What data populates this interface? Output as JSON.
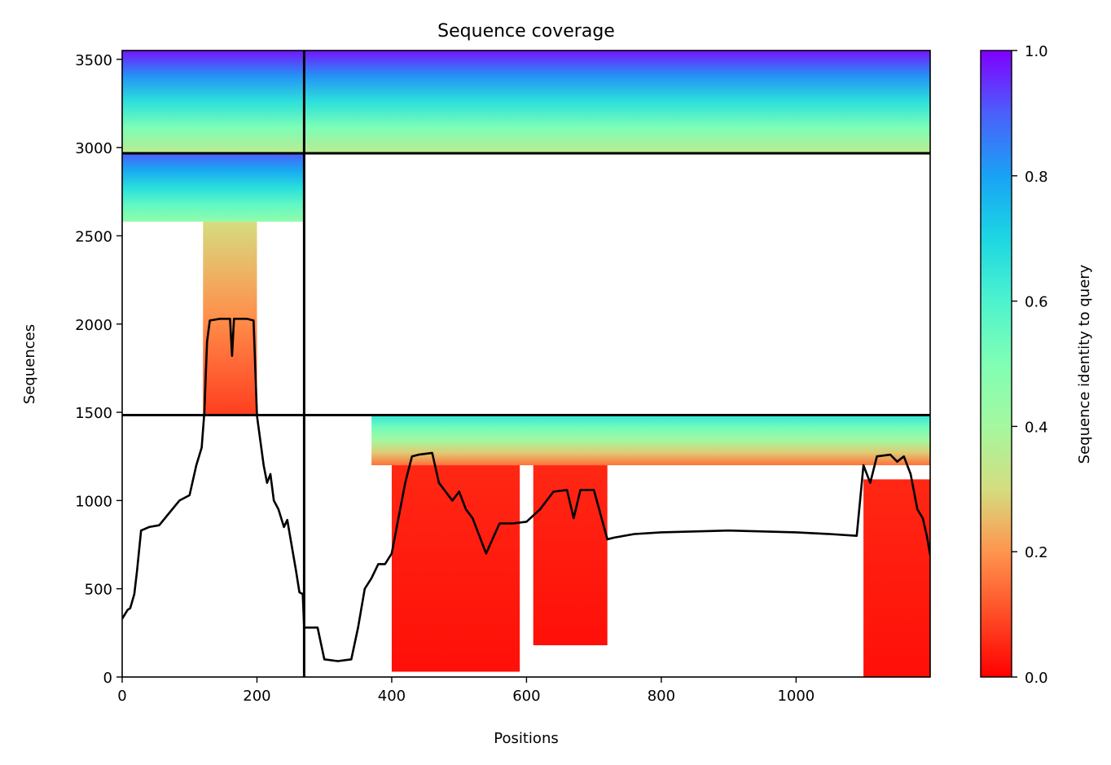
{
  "chart_data": {
    "type": "heatmap",
    "title": "Sequence coverage",
    "xlabel": "Positions",
    "ylabel": "Sequences",
    "xlim": [
      0,
      1199
    ],
    "ylim": [
      0,
      3550
    ],
    "x_ticks": [
      0,
      200,
      400,
      600,
      800,
      1000
    ],
    "y_ticks": [
      0,
      500,
      1000,
      1500,
      2000,
      2500,
      3000,
      3500
    ],
    "colorbar": {
      "label": "Sequence identity to query",
      "colormap": "rainbow",
      "range": [
        0,
        1
      ],
      "ticks": [
        "0.0",
        "0.2",
        "0.4",
        "0.6",
        "0.8",
        "1.0"
      ]
    },
    "grid": false,
    "chain_boundaries": {
      "x": [
        270
      ],
      "y": [
        1484,
        2968
      ]
    },
    "coverage_blocks": [
      {
        "x0": 0,
        "x1": 270,
        "y0": 2968,
        "y1": 3550,
        "identity_bottom": 0.35,
        "identity_top": 0.98
      },
      {
        "x0": 270,
        "x1": 1199,
        "y0": 2968,
        "y1": 3550,
        "identity_bottom": 0.35,
        "identity_top": 0.98
      },
      {
        "x0": 0,
        "x1": 270,
        "y0": 2580,
        "y1": 2968,
        "identity_bottom": 0.45,
        "identity_top": 0.9
      },
      {
        "x0": 120,
        "x1": 200,
        "y0": 1484,
        "y1": 2580,
        "identity_bottom": 0.08,
        "identity_top": 0.3
      },
      {
        "x0": 370,
        "x1": 1199,
        "y0": 1200,
        "y1": 1484,
        "identity_bottom": 0.15,
        "identity_top": 0.65
      },
      {
        "x0": 400,
        "x1": 590,
        "y0": 30,
        "y1": 1200,
        "identity_bottom": 0.02,
        "identity_top": 0.05
      },
      {
        "x0": 610,
        "x1": 720,
        "y0": 180,
        "y1": 1200,
        "identity_bottom": 0.02,
        "identity_top": 0.05
      },
      {
        "x0": 1100,
        "x1": 1199,
        "y0": 0,
        "y1": 1120,
        "identity_bottom": 0.02,
        "identity_top": 0.05
      }
    ],
    "coverage_line": {
      "x": [
        0,
        8,
        12,
        18,
        22,
        28,
        40,
        55,
        70,
        85,
        100,
        110,
        118,
        122,
        126,
        130,
        145,
        160,
        163,
        166,
        170,
        185,
        195,
        200,
        210,
        215,
        220,
        225,
        232,
        240,
        245,
        250,
        258,
        263,
        268,
        270,
        290,
        300,
        320,
        340,
        350,
        360,
        370,
        380,
        390,
        400,
        410,
        420,
        430,
        440,
        460,
        470,
        480,
        490,
        500,
        510,
        520,
        530,
        540,
        560,
        580,
        600,
        620,
        640,
        660,
        670,
        680,
        700,
        720,
        730,
        760,
        800,
        900,
        1000,
        1050,
        1090,
        1100,
        1110,
        1120,
        1140,
        1150,
        1160,
        1170,
        1180,
        1188,
        1194,
        1199
      ],
      "y": [
        330,
        380,
        390,
        470,
        600,
        830,
        850,
        860,
        930,
        1000,
        1030,
        1200,
        1300,
        1500,
        1900,
        2020,
        2030,
        2030,
        1820,
        2030,
        2030,
        2030,
        2020,
        1480,
        1200,
        1100,
        1150,
        1000,
        950,
        850,
        890,
        780,
        600,
        480,
        470,
        280,
        280,
        100,
        90,
        100,
        280,
        500,
        560,
        640,
        640,
        700,
        900,
        1100,
        1250,
        1260,
        1270,
        1100,
        1050,
        1000,
        1050,
        950,
        900,
        800,
        700,
        870,
        870,
        880,
        950,
        1050,
        1060,
        900,
        1060,
        1060,
        780,
        790,
        810,
        820,
        830,
        820,
        810,
        800,
        1200,
        1100,
        1250,
        1260,
        1220,
        1250,
        1150,
        950,
        900,
        800,
        690
      ]
    }
  }
}
